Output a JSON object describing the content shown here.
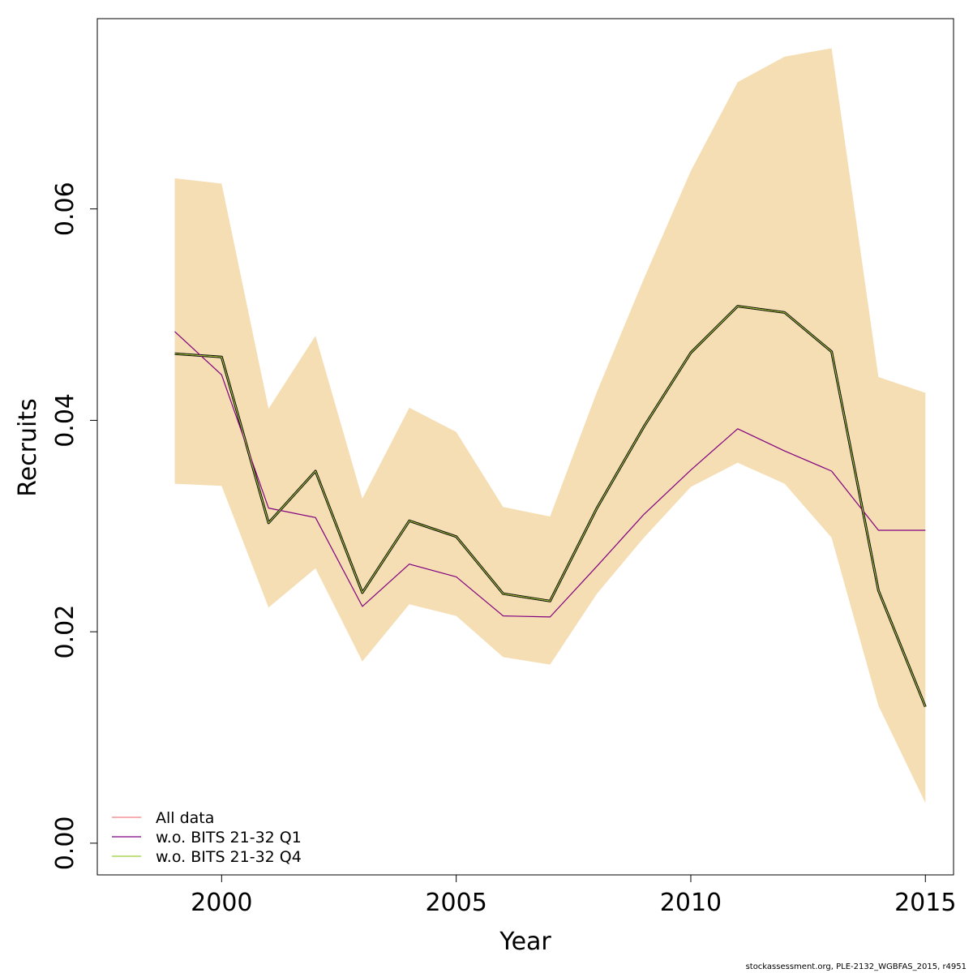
{
  "chart_data": {
    "type": "line",
    "xlabel": "Year",
    "ylabel": "Recruits",
    "x": [
      1999,
      2000,
      2001,
      2002,
      2003,
      2004,
      2005,
      2006,
      2007,
      2008,
      2009,
      2010,
      2011,
      2012,
      2013,
      2014,
      2015
    ],
    "xlim": [
      1997.35,
      2015.6
    ],
    "ylim": [
      -0.003,
      0.078
    ],
    "xticks": [
      2000,
      2005,
      2010,
      2015
    ],
    "xtick_labels": [
      "2000",
      "2005",
      "2010",
      "2015"
    ],
    "yticks": [
      0.0,
      0.02,
      0.04,
      0.06
    ],
    "ytick_labels": [
      "0.00",
      "0.02",
      "0.04",
      "0.06"
    ],
    "band": {
      "color": "#F5DEB3",
      "lower": [
        0.034,
        0.0338,
        0.0223,
        0.026,
        0.0172,
        0.0226,
        0.0215,
        0.0176,
        0.0169,
        0.0236,
        0.0289,
        0.0337,
        0.036,
        0.034,
        0.0289,
        0.013,
        0.0038
      ],
      "upper": [
        0.0629,
        0.0624,
        0.0411,
        0.048,
        0.0326,
        0.0412,
        0.0389,
        0.0318,
        0.0309,
        0.0427,
        0.0534,
        0.0636,
        0.072,
        0.0744,
        0.0752,
        0.0441,
        0.0426
      ]
    },
    "series": [
      {
        "name": "All data",
        "color": "#F08080",
        "values": [
          0.0463,
          0.046,
          0.0303,
          0.0352,
          0.0237,
          0.0305,
          0.029,
          0.0236,
          0.0229,
          0.0317,
          0.0394,
          0.0464,
          0.0508,
          0.0502,
          0.0465,
          0.0239,
          0.0129
        ]
      },
      {
        "name": "w.o. BITS 21-32 Q1",
        "color": "#800080",
        "values": [
          0.0484,
          0.0443,
          0.0317,
          0.0308,
          0.0224,
          0.0264,
          0.0252,
          0.0215,
          0.0214,
          0.0262,
          0.0311,
          0.0353,
          0.0392,
          0.0371,
          0.0352,
          0.0296,
          0.0296
        ]
      },
      {
        "name": "w.o. BITS 21-32 Q4",
        "color": "#9ACD32",
        "values": [
          0.0463,
          0.046,
          0.0303,
          0.0352,
          0.0237,
          0.0305,
          0.029,
          0.0236,
          0.0229,
          0.0317,
          0.0394,
          0.0464,
          0.0508,
          0.0502,
          0.0465,
          0.0239,
          0.0129
        ]
      }
    ],
    "central_line_color": "#000000",
    "legend_position": "bottom-left",
    "grid": false
  },
  "footer": "stockassessment.org, PLE-2132_WGBFAS_2015, r4951"
}
